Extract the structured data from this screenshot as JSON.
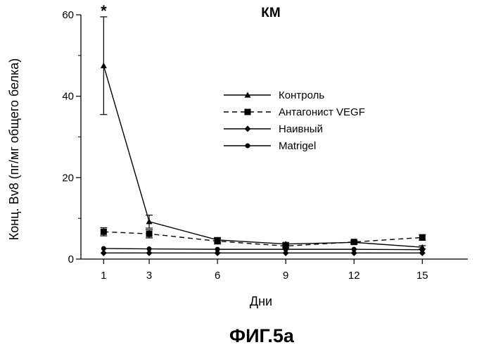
{
  "chart_data": {
    "type": "line",
    "title": "КМ",
    "xlabel": "Дни",
    "ylabel": "Конц. Bv8 (пг/мг общего белка)",
    "figure_caption": "ФИГ.5а",
    "x": [
      1,
      3,
      6,
      9,
      12,
      15
    ],
    "x_tick_labels": [
      "1",
      "3",
      "6",
      "9",
      "12",
      "15"
    ],
    "xlim": [
      0,
      17
    ],
    "ylim": [
      0,
      60
    ],
    "y_ticks": [
      0,
      20,
      40,
      60
    ],
    "y_tick_labels": [
      "0",
      "20",
      "40",
      "60"
    ],
    "grid": false,
    "legend_position": "center-right",
    "significance_marker": {
      "x": 1,
      "label": "*"
    },
    "series": [
      {
        "name": "Контроль",
        "marker": "triangle",
        "dash": "solid",
        "values": [
          47.5,
          9.2,
          4.7,
          3.7,
          4.1,
          2.9
        ],
        "errors": [
          12,
          1.6,
          0.6,
          0.4,
          0.4,
          0.4
        ]
      },
      {
        "name": "Антагонист VEGF",
        "marker": "square",
        "dash": "dashed",
        "values": [
          6.7,
          6.2,
          4.4,
          3.2,
          4.2,
          5.3
        ],
        "errors": [
          1,
          1,
          0.7,
          0.4,
          0.4,
          0.7
        ]
      },
      {
        "name": "Наивный",
        "marker": "diamond",
        "dash": "solid",
        "values": [
          1.5,
          1.5,
          1.5,
          1.5,
          1.5,
          1.5
        ],
        "errors": [
          0,
          0,
          0,
          0,
          0,
          0
        ]
      },
      {
        "name": "Matrigel",
        "marker": "circle",
        "dash": "solid",
        "values": [
          2.6,
          2.5,
          2.4,
          2.4,
          2.4,
          2.3
        ],
        "errors": [
          0,
          0,
          0,
          0,
          0,
          0
        ]
      }
    ]
  }
}
